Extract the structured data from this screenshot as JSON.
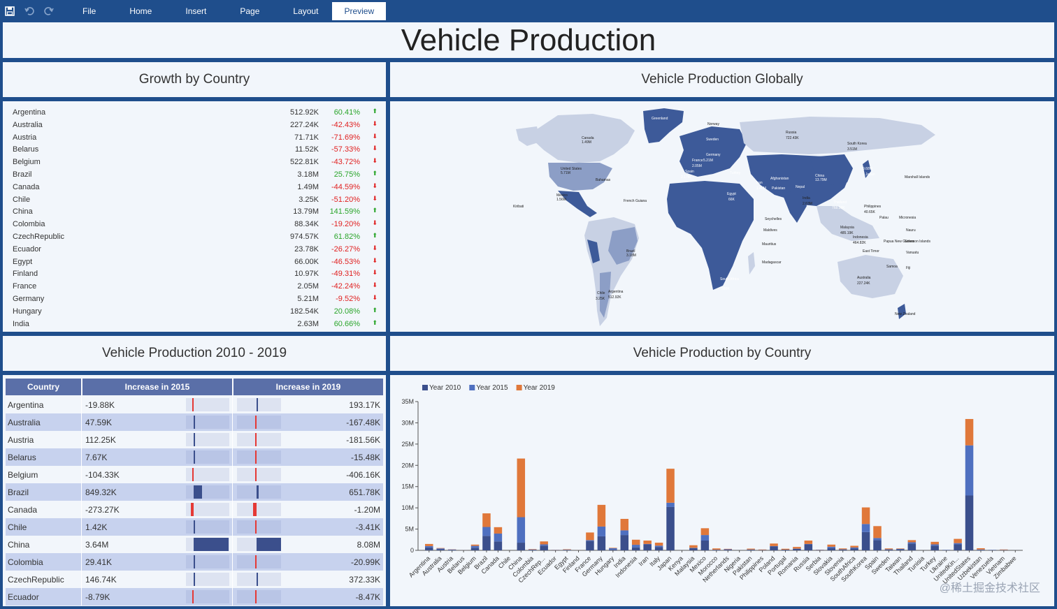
{
  "toolbar": {
    "menus": [
      "File",
      "Home",
      "Insert",
      "Page",
      "Layout"
    ],
    "preview": "Preview"
  },
  "title": "Vehicle Production",
  "growth": {
    "title": "Growth by Country",
    "rows": [
      {
        "country": "Argentina",
        "value": "512.92K",
        "pct": "60.41%",
        "dir": "up"
      },
      {
        "country": "Australia",
        "value": "227.24K",
        "pct": "-42.43%",
        "dir": "down"
      },
      {
        "country": "Austria",
        "value": "71.71K",
        "pct": "-71.69%",
        "dir": "down"
      },
      {
        "country": "Belarus",
        "value": "11.52K",
        "pct": "-57.33%",
        "dir": "down"
      },
      {
        "country": "Belgium",
        "value": "522.81K",
        "pct": "-43.72%",
        "dir": "down"
      },
      {
        "country": "Brazil",
        "value": "3.18M",
        "pct": "25.75%",
        "dir": "up"
      },
      {
        "country": "Canada",
        "value": "1.49M",
        "pct": "-44.59%",
        "dir": "down"
      },
      {
        "country": "Chile",
        "value": "3.25K",
        "pct": "-51.20%",
        "dir": "down"
      },
      {
        "country": "China",
        "value": "13.79M",
        "pct": "141.59%",
        "dir": "up"
      },
      {
        "country": "Colombia",
        "value": "88.34K",
        "pct": "-19.20%",
        "dir": "down"
      },
      {
        "country": "CzechRepublic",
        "value": "974.57K",
        "pct": "61.82%",
        "dir": "up"
      },
      {
        "country": "Ecuador",
        "value": "23.78K",
        "pct": "-26.27%",
        "dir": "down"
      },
      {
        "country": "Egypt",
        "value": "66.00K",
        "pct": "-46.53%",
        "dir": "down"
      },
      {
        "country": "Finland",
        "value": "10.97K",
        "pct": "-49.31%",
        "dir": "down"
      },
      {
        "country": "France",
        "value": "2.05M",
        "pct": "-42.24%",
        "dir": "down"
      },
      {
        "country": "Germany",
        "value": "5.21M",
        "pct": "-9.52%",
        "dir": "down"
      },
      {
        "country": "Hungary",
        "value": "182.54K",
        "pct": "20.08%",
        "dir": "up"
      },
      {
        "country": "India",
        "value": "2.63M",
        "pct": "60.66%",
        "dir": "up"
      }
    ]
  },
  "map": {
    "title": "Vehicle Production Globally",
    "labels": [
      {
        "name": "Greenland"
      },
      {
        "name": "Canada",
        "value": "1.49M"
      },
      {
        "name": "United States",
        "value": "5.71M"
      },
      {
        "name": "Mexico",
        "value": "1.56M"
      },
      {
        "name": "Brazil",
        "value": "3.18M"
      },
      {
        "name": "Russia",
        "value": "722.43K"
      },
      {
        "name": "China",
        "value": "13.79M"
      },
      {
        "name": "India",
        "value": "2.63M"
      },
      {
        "name": "Australia",
        "value": "227.24K"
      },
      {
        "name": "South Korea",
        "value": "3.51M"
      },
      {
        "name": "Japan",
        "value": "9.68M"
      },
      {
        "name": "Norway"
      },
      {
        "name": "Sweden"
      },
      {
        "name": "Germany",
        "value": "5.21M"
      },
      {
        "name": "Spain",
        "value": "2.17M"
      },
      {
        "name": "France",
        "value": "2.05M"
      },
      {
        "name": "Iran",
        "value": "1.40M"
      },
      {
        "name": "Turkey"
      },
      {
        "name": "Thailand",
        "value": "768.39K"
      },
      {
        "name": "Indonesia",
        "value": "464.82K"
      },
      {
        "name": "Malaysia",
        "value": "485.19K"
      },
      {
        "name": "Philippines",
        "value": "40.65K"
      },
      {
        "name": "Argentina",
        "value": "512.92K"
      },
      {
        "name": "Chile",
        "value": "3.25K"
      },
      {
        "name": "South Africa",
        "value": "380K"
      },
      {
        "name": "Egypt",
        "value": "66K"
      },
      {
        "name": "New Zealand"
      },
      {
        "name": "Madagascar"
      },
      {
        "name": "Mauritius"
      },
      {
        "name": "Marshall Islands"
      },
      {
        "name": "Kiribati"
      },
      {
        "name": "French Guiana"
      },
      {
        "name": "Bahamas"
      },
      {
        "name": "Palau"
      },
      {
        "name": "Micronesia"
      },
      {
        "name": "Nauru"
      },
      {
        "name": "Vanuatu"
      },
      {
        "name": "Samoa"
      },
      {
        "name": "Fiji"
      },
      {
        "name": "Maldives"
      },
      {
        "name": "Seychelles"
      },
      {
        "name": "East Timor"
      },
      {
        "name": "Solomon Islands"
      },
      {
        "name": "Papua New Guinea"
      },
      {
        "name": "Pakistan"
      },
      {
        "name": "Nepal"
      },
      {
        "name": "Afghanistan"
      }
    ]
  },
  "increase": {
    "title": "Vehicle Production  2010 - 2019",
    "headers": [
      "Country",
      "Increase in 2015",
      "Increase in 2019"
    ],
    "rows": [
      {
        "country": "Argentina",
        "v2015": "-19.88K",
        "v2019": "193.17K"
      },
      {
        "country": "Australia",
        "v2015": "47.59K",
        "v2019": "-167.48K"
      },
      {
        "country": "Austria",
        "v2015": "112.25K",
        "v2019": "-181.56K"
      },
      {
        "country": "Belarus",
        "v2015": "7.67K",
        "v2019": "-15.48K"
      },
      {
        "country": "Belgium",
        "v2015": "-104.33K",
        "v2019": "-406.16K"
      },
      {
        "country": "Brazil",
        "v2015": "849.32K",
        "v2019": "651.78K"
      },
      {
        "country": "Canada",
        "v2015": "-273.27K",
        "v2019": "-1.20M"
      },
      {
        "country": "Chile",
        "v2015": "1.42K",
        "v2019": "-3.41K"
      },
      {
        "country": "China",
        "v2015": "3.64M",
        "v2019": "8.08M"
      },
      {
        "country": "Colombia",
        "v2015": "29.41K",
        "v2019": "-20.99K"
      },
      {
        "country": "CzechRepublic",
        "v2015": "146.74K",
        "v2019": "372.33K"
      },
      {
        "country": "Ecuador",
        "v2015": "-8.79K",
        "v2019": "-8.47K"
      }
    ]
  },
  "chart_data": {
    "type": "bar",
    "title": "Vehicle Production by Country",
    "stacked": true,
    "legend": "top-left",
    "ylim": [
      0,
      35
    ],
    "yticks": [
      "0",
      "5M",
      "10M",
      "15M",
      "20M",
      "25M",
      "30M",
      "35M"
    ],
    "categories": [
      "Argentina",
      "Australia",
      "Austria",
      "Belarus",
      "Belgium",
      "Brazil",
      "Canada",
      "Chile",
      "China",
      "Colombia",
      "CzechRep...",
      "Ecuador",
      "Egypt",
      "Finland",
      "France",
      "Germany",
      "Hungary",
      "India",
      "Indonesia",
      "Iran",
      "Italy",
      "Japan",
      "Kenya",
      "Malaysia",
      "Mexico",
      "Morocco",
      "Netherlands",
      "Nigeria",
      "Pakistan",
      "Philippines",
      "Poland",
      "Portugal",
      "Romania",
      "Russia",
      "Serbia",
      "Slovakia",
      "Slovenia",
      "SouthAfrica",
      "SouthKorea",
      "Spain",
      "Sweden",
      "Taiwan",
      "Thailand",
      "Tunisia",
      "Turkey",
      "Ukraine",
      "UnitedKin...",
      "UnitedStates",
      "Uzbekistan",
      "Venezuela",
      "Vietnam",
      "Zimbabwe"
    ],
    "series": [
      {
        "name": "Year 2010",
        "color": "#3b4f8c",
        "values": [
          0.7,
          0.25,
          0.1,
          0.02,
          0.6,
          3.4,
          2.1,
          0,
          1.8,
          0.1,
          1.1,
          0.05,
          0.1,
          0.01,
          2.2,
          3.3,
          0.2,
          3.6,
          0.7,
          1.4,
          0.8,
          10.2,
          0.01,
          0.55,
          2.3,
          0.05,
          0.15,
          0.01,
          0.15,
          0.05,
          0.9,
          0.15,
          0.35,
          1.4,
          0.02,
          0.55,
          0.2,
          0.47,
          4.3,
          2.4,
          0.2,
          0.3,
          1.6,
          0.01,
          1.1,
          0.1,
          1.4,
          12.9,
          0.1,
          0.1,
          0.05,
          0.01
        ]
      },
      {
        "name": "Year 2015",
        "color": "#4f70c0",
        "values": [
          0.3,
          0.2,
          0.1,
          0.01,
          0.45,
          2.1,
          1.85,
          0,
          6.0,
          0.1,
          0.3,
          0.03,
          0.05,
          0,
          0.2,
          2.3,
          0.3,
          1.1,
          0.6,
          0.1,
          0.3,
          1.0,
          0,
          0.05,
          1.3,
          0.1,
          0.1,
          0,
          0.05,
          0.05,
          0.1,
          0.02,
          0.05,
          0.1,
          0.1,
          0.3,
          0.05,
          0.2,
          1.9,
          0.5,
          0.05,
          0.05,
          0.3,
          0,
          0.3,
          0,
          0.3,
          11.8,
          0.1,
          0,
          0.05,
          0
        ]
      },
      {
        "name": "Year 2019",
        "color": "#e0783a",
        "values": [
          0.5,
          0.1,
          0.05,
          0.01,
          0.3,
          3.2,
          1.5,
          0,
          13.8,
          0.1,
          0.7,
          0.03,
          0.1,
          0.01,
          1.8,
          5.1,
          0.1,
          2.7,
          1.2,
          0.8,
          0.7,
          8.0,
          0,
          0.6,
          1.6,
          0.3,
          0.1,
          0,
          0.2,
          0.1,
          0.6,
          0.2,
          0.4,
          0.8,
          0.05,
          0.5,
          0.2,
          0.4,
          3.9,
          2.8,
          0.2,
          0.1,
          0.5,
          0,
          0.6,
          0,
          1.0,
          6.2,
          0.3,
          0,
          0.1,
          0
        ]
      }
    ]
  },
  "watermark": "@稀土掘金技术社区"
}
